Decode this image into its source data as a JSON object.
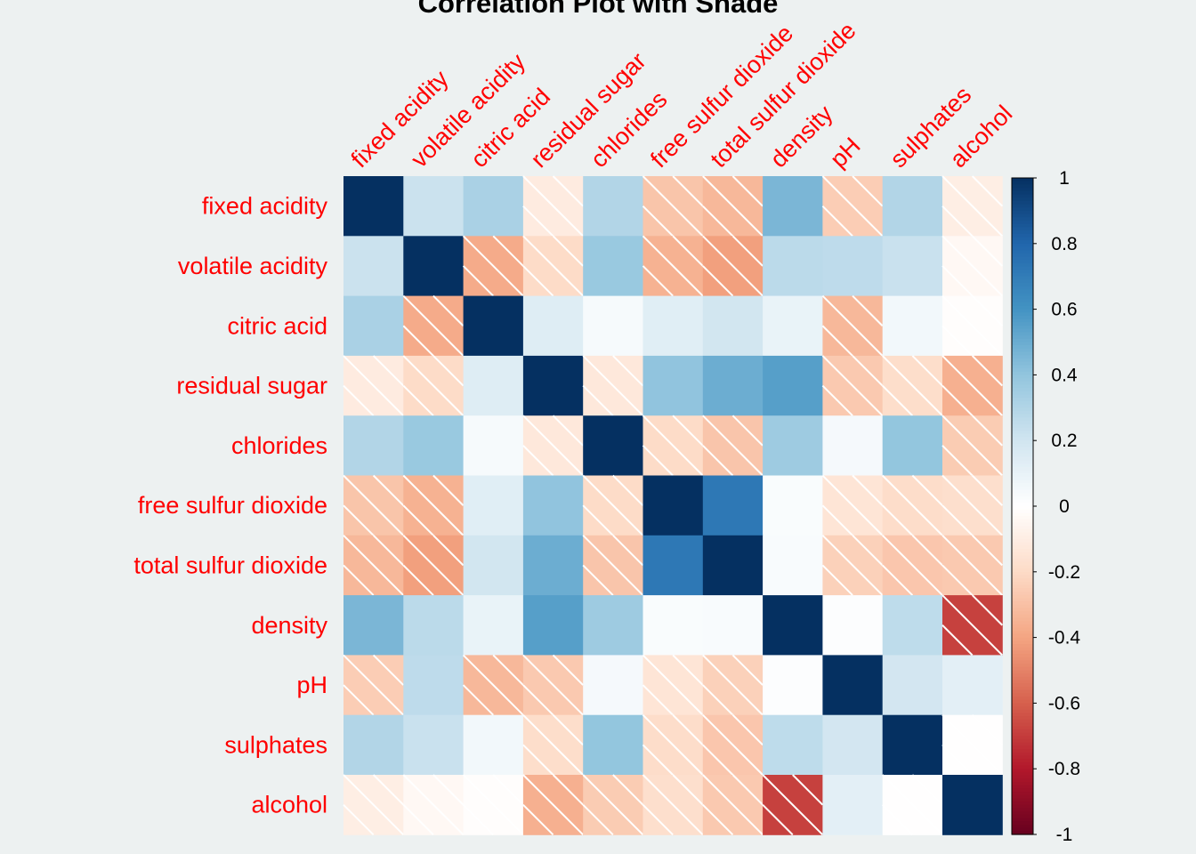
{
  "chart_data": {
    "type": "heatmap",
    "title": "Correlation Plot with Shade",
    "variables": [
      "fixed acidity",
      "volatile acidity",
      "citric acid",
      "residual sugar",
      "chlorides",
      "free sulfur dioxide",
      "total sulfur dioxide",
      "density",
      "pH",
      "sulphates",
      "alcohol"
    ],
    "matrix": [
      [
        1.0,
        0.219,
        0.324,
        -0.112,
        0.298,
        -0.283,
        -0.329,
        0.459,
        -0.253,
        0.3,
        -0.095
      ],
      [
        0.219,
        1.0,
        -0.378,
        -0.196,
        0.377,
        -0.353,
        -0.414,
        0.271,
        0.261,
        0.226,
        -0.038
      ],
      [
        0.324,
        -0.378,
        1.0,
        0.142,
        0.039,
        0.133,
        0.195,
        0.096,
        -0.33,
        0.056,
        -0.01
      ],
      [
        -0.112,
        -0.196,
        0.142,
        1.0,
        -0.129,
        0.403,
        0.495,
        0.553,
        -0.267,
        -0.186,
        -0.359
      ],
      [
        0.298,
        0.377,
        0.039,
        -0.129,
        1.0,
        -0.195,
        -0.28,
        0.363,
        0.045,
        0.396,
        -0.257
      ],
      [
        -0.283,
        -0.353,
        0.133,
        0.403,
        -0.195,
        1.0,
        0.721,
        0.026,
        -0.146,
        -0.188,
        -0.18
      ],
      [
        -0.329,
        -0.414,
        0.195,
        0.495,
        -0.28,
        0.721,
        1.0,
        0.032,
        -0.238,
        -0.276,
        -0.266
      ],
      [
        0.459,
        0.271,
        0.096,
        0.553,
        0.363,
        0.026,
        0.032,
        1.0,
        0.012,
        0.259,
        -0.687
      ],
      [
        -0.253,
        0.261,
        -0.33,
        -0.267,
        0.045,
        -0.146,
        -0.238,
        0.012,
        1.0,
        0.192,
        0.121
      ],
      [
        0.3,
        0.226,
        0.056,
        -0.186,
        0.396,
        -0.188,
        -0.276,
        0.259,
        0.192,
        1.0,
        -0.003
      ],
      [
        -0.095,
        -0.038,
        -0.01,
        -0.359,
        -0.257,
        -0.18,
        -0.266,
        -0.687,
        0.121,
        -0.003,
        1.0
      ]
    ],
    "value_range": [
      -1,
      1
    ],
    "negative_shading": "diagonal white hatch",
    "legend": {
      "placement": "right",
      "ticks": [
        "1",
        "0.8",
        "0.6",
        "0.4",
        "0.2",
        "0",
        "-0.2",
        "-0.4",
        "-0.6",
        "-0.8",
        "-1"
      ]
    },
    "palette": [
      "#67001F",
      "#B2182B",
      "#D6604D",
      "#F4A582",
      "#FDDBC7",
      "#FFFFFF",
      "#D1E5F0",
      "#92C5DE",
      "#4393C3",
      "#2166AC",
      "#053061"
    ],
    "label_color": "#FF0000"
  }
}
